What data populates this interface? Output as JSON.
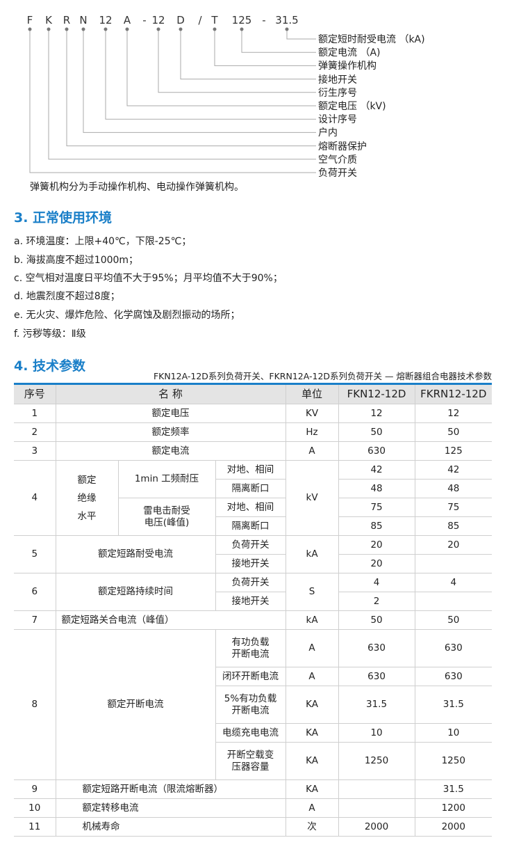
{
  "model_code": {
    "parts": [
      "F",
      "K",
      "R",
      "N",
      "12",
      "A",
      "-",
      "12",
      "D",
      "/",
      "T",
      "125",
      "-",
      "31.5"
    ],
    "labels": [
      "额定短时耐受电流 （kA)",
      "额定电流 （A)",
      "弹簧操作机构",
      "接地开关",
      "衍生序号",
      "额定电压 （kV)",
      "设计序号",
      "户内",
      "熔断器保护",
      "空气介质",
      "负荷开关"
    ],
    "note": "弹簧机构分为手动操作机构、电动操作弹簧机构。"
  },
  "section3": {
    "title": "3. 正常使用环境",
    "items": [
      "a. 环境温度：上限+40℃，下限-25℃；",
      "b. 海拔高度不超过1000m；",
      "c. 空气相对温度日平均值不大于95%；月平均值不大于90%；",
      "d. 地震烈度不超过8度；",
      "e. 无火灾、爆炸危险、化学腐蚀及剧烈振动的场所；",
      "f. 污秽等级：Ⅱ级"
    ]
  },
  "section4": {
    "title": "4. 技术参数",
    "subtitle": "FKN12A-12D系列负荷开关、FKRN12A-12D系列负荷开关 — 熔断器组合电器技术参数",
    "headers": [
      "序号",
      "名 称",
      "单位",
      "FKN12-12D",
      "FKRN12-12D"
    ],
    "r1": [
      "1",
      "额定电压",
      "KV",
      "12",
      "12"
    ],
    "r2": [
      "2",
      "额定频率",
      "Hz",
      "50",
      "50"
    ],
    "r3": [
      "3",
      "额定电流",
      "A",
      "630",
      "125"
    ],
    "r4": {
      "no": "4",
      "name": [
        "额定",
        "绝缘",
        "水平"
      ],
      "unit": "kV",
      "g1": "1min 工频耐压",
      "g2": "雷电击耐受",
      "g2b": "电压(峰值)",
      "sub": [
        [
          "对地、相间",
          "42",
          "42"
        ],
        [
          "隔离断口",
          "48",
          "48"
        ],
        [
          "对地、相间",
          "75",
          "75"
        ],
        [
          "隔离断口",
          "85",
          "85"
        ]
      ]
    },
    "r5": {
      "no": "5",
      "name": "额定短路耐受电流",
      "unit": "kA",
      "sub": [
        [
          "负荷开关",
          "20",
          "20"
        ],
        [
          "接地开关",
          "20",
          ""
        ]
      ]
    },
    "r6": {
      "no": "6",
      "name": "额定短路持续时间",
      "unit": "S",
      "sub": [
        [
          "负荷开关",
          "4",
          "4"
        ],
        [
          "接地开关",
          "2",
          ""
        ]
      ]
    },
    "r7": [
      "7",
      "额定短路关合电流（峰值）",
      "kA",
      "50",
      "50"
    ],
    "r8": {
      "no": "8",
      "name": "额定开断电流",
      "sub": [
        [
          "有功负载",
          "开断电流",
          "A",
          "630",
          "630"
        ],
        [
          "闭环开断电流",
          "",
          "A",
          "630",
          "630"
        ],
        [
          "5%有功负载",
          "开断电流",
          "KA",
          "31.5",
          "31.5"
        ],
        [
          "电缆充电电流",
          "",
          "KA",
          "10",
          "10"
        ],
        [
          "开断空载变",
          "压器容量",
          "KA",
          "1250",
          "1250"
        ]
      ]
    },
    "r9": [
      "9",
      "额定短路开断电流（限流熔断器）",
      "KA",
      "",
      "31.5"
    ],
    "r10": [
      "10",
      "额定转移电流",
      "A",
      "",
      "1200"
    ],
    "r11": [
      "11",
      "机械寿命",
      "次",
      "2000",
      "2000"
    ]
  },
  "colors": {
    "accent": "#1a7fc8",
    "header_bg": "#e4e4e4"
  }
}
